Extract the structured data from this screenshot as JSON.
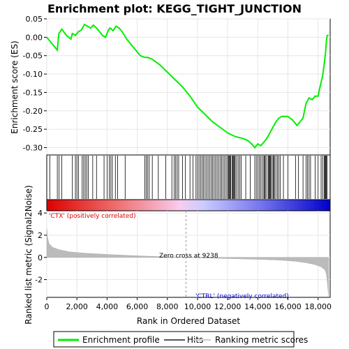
{
  "chart_data": {
    "type": "line",
    "title": "Enrichment plot: KEGG_TIGHT_JUNCTION",
    "ylabel_es": "Enrichment score (ES)",
    "ylabel_metric": "Ranked list metric (Signal2Noise)",
    "xlabel": "Rank in Ordered Dataset",
    "es_ylim": [
      -0.32,
      0.05
    ],
    "es_yticks": [
      "0.05",
      "0.00",
      "-0.05",
      "-0.10",
      "-0.15",
      "-0.20",
      "-0.25",
      "-0.30"
    ],
    "es_ytick_values": [
      0.05,
      0.0,
      -0.05,
      -0.1,
      -0.15,
      -0.2,
      -0.25,
      -0.3
    ],
    "metric_ylim": [
      -3.6,
      4.2
    ],
    "metric_yticks": [
      "4",
      "2",
      "0",
      "-2"
    ],
    "metric_ytick_values": [
      4,
      2,
      0,
      -2
    ],
    "xlim": [
      0,
      18800
    ],
    "xticks": [
      "0",
      "2,000",
      "4,000",
      "6,000",
      "8,000",
      "10,000",
      "12,000",
      "14,000",
      "16,000",
      "18,000"
    ],
    "xtick_values": [
      0,
      2000,
      4000,
      6000,
      8000,
      10000,
      12000,
      14000,
      16000,
      18000
    ],
    "series": [
      {
        "name": "Enrichment profile",
        "color": "#00ee00",
        "x": [
          0,
          700,
          800,
          1000,
          1300,
          1600,
          1700,
          1900,
          2100,
          2300,
          2500,
          2700,
          2900,
          3100,
          3300,
          3500,
          3700,
          3900,
          4100,
          4200,
          4400,
          4600,
          4800,
          5000,
          5300,
          5600,
          5900,
          6200,
          6500,
          6700,
          7000,
          7500,
          8000,
          8500,
          9000,
          9500,
          10000,
          10500,
          11000,
          11500,
          12000,
          12500,
          13000,
          13300,
          13600,
          13800,
          14000,
          14200,
          14400,
          14600,
          14800,
          15000,
          15200,
          15400,
          15600,
          15800,
          16000,
          16300,
          16600,
          16800,
          17000,
          17200,
          17400,
          17600,
          17800,
          18000,
          18100,
          18300,
          18400,
          18500,
          18550,
          18600,
          18700
        ],
        "y": [
          0.0,
          -0.035,
          0.01,
          0.022,
          0.005,
          -0.005,
          0.01,
          0.005,
          0.015,
          0.02,
          0.035,
          0.03,
          0.025,
          0.033,
          0.025,
          0.015,
          0.005,
          0.0,
          0.02,
          0.025,
          0.018,
          0.03,
          0.025,
          0.015,
          -0.005,
          -0.02,
          -0.035,
          -0.05,
          -0.055,
          -0.055,
          -0.06,
          -0.075,
          -0.095,
          -0.115,
          -0.135,
          -0.16,
          -0.19,
          -0.21,
          -0.23,
          -0.245,
          -0.26,
          -0.27,
          -0.275,
          -0.28,
          -0.29,
          -0.3,
          -0.29,
          -0.295,
          -0.285,
          -0.275,
          -0.26,
          -0.245,
          -0.23,
          -0.22,
          -0.215,
          -0.215,
          -0.215,
          -0.225,
          -0.24,
          -0.23,
          -0.22,
          -0.18,
          -0.165,
          -0.17,
          -0.16,
          -0.16,
          -0.14,
          -0.105,
          -0.075,
          -0.04,
          -0.01,
          0.005,
          0.005
        ]
      },
      {
        "name": "Hits",
        "color": "#000000",
        "positions": [
          200,
          700,
          820,
          1000,
          1700,
          1900,
          2000,
          2100,
          2350,
          2450,
          2550,
          2650,
          2750,
          3050,
          3300,
          3800,
          4000,
          4150,
          4250,
          4350,
          4550,
          4700,
          5200,
          6500,
          6600,
          6700,
          6800,
          7000,
          7400,
          7900,
          8300,
          8450,
          8550,
          8650,
          8750,
          9000,
          9200,
          9500,
          9700,
          9900,
          10000,
          10100,
          10200,
          10300,
          10400,
          10500,
          10600,
          10700,
          10800,
          10900,
          11000,
          11100,
          11200,
          11300,
          11400,
          11500,
          11600,
          11700,
          11800,
          11900,
          12000,
          12050,
          12100,
          12150,
          12200,
          12300,
          12350,
          12400,
          12450,
          12500,
          12600,
          12700,
          12800,
          12900,
          13200,
          13500,
          13800,
          13900,
          14000,
          14100,
          14200,
          14300,
          14400,
          14450,
          14500,
          14600,
          14700,
          14750,
          14800,
          14850,
          14900,
          15000,
          15050,
          15100,
          15200,
          15300,
          15400,
          15500,
          15700,
          16000,
          16500,
          16700,
          17000,
          17200,
          17300,
          17400,
          17500,
          17800,
          18000,
          18200,
          18300,
          18400,
          18450,
          18500,
          18550,
          18600
        ]
      },
      {
        "name": "Ranking metric scores",
        "color": "#bbbbbb",
        "x": [
          0,
          50,
          150,
          400,
          800,
          1500,
          2500,
          4000,
          6000,
          8000,
          9238,
          10000,
          12000,
          14000,
          15500,
          16500,
          17200,
          17800,
          18200,
          18450,
          18550,
          18620,
          18660,
          18700
        ],
        "y": [
          2.6,
          1.8,
          1.25,
          0.9,
          0.7,
          0.5,
          0.38,
          0.27,
          0.14,
          0.05,
          0.0,
          -0.04,
          -0.1,
          -0.17,
          -0.25,
          -0.35,
          -0.48,
          -0.65,
          -0.85,
          -1.1,
          -1.5,
          -2.3,
          -3.0,
          -3.5
        ]
      }
    ],
    "annotations": {
      "positive_label": "'CTX' (positively correlated)",
      "negative_label": "'CTRL' (negatively correlated)",
      "zero_cross_label": "Zero cross at 9238",
      "zero_cross": 9238
    },
    "legend_position": "bottom",
    "colors": {
      "positive": "#dd0000",
      "negative": "#0000cc",
      "enrichment_line": "#00ee00",
      "metric_fill": "#bbbbbb"
    }
  }
}
